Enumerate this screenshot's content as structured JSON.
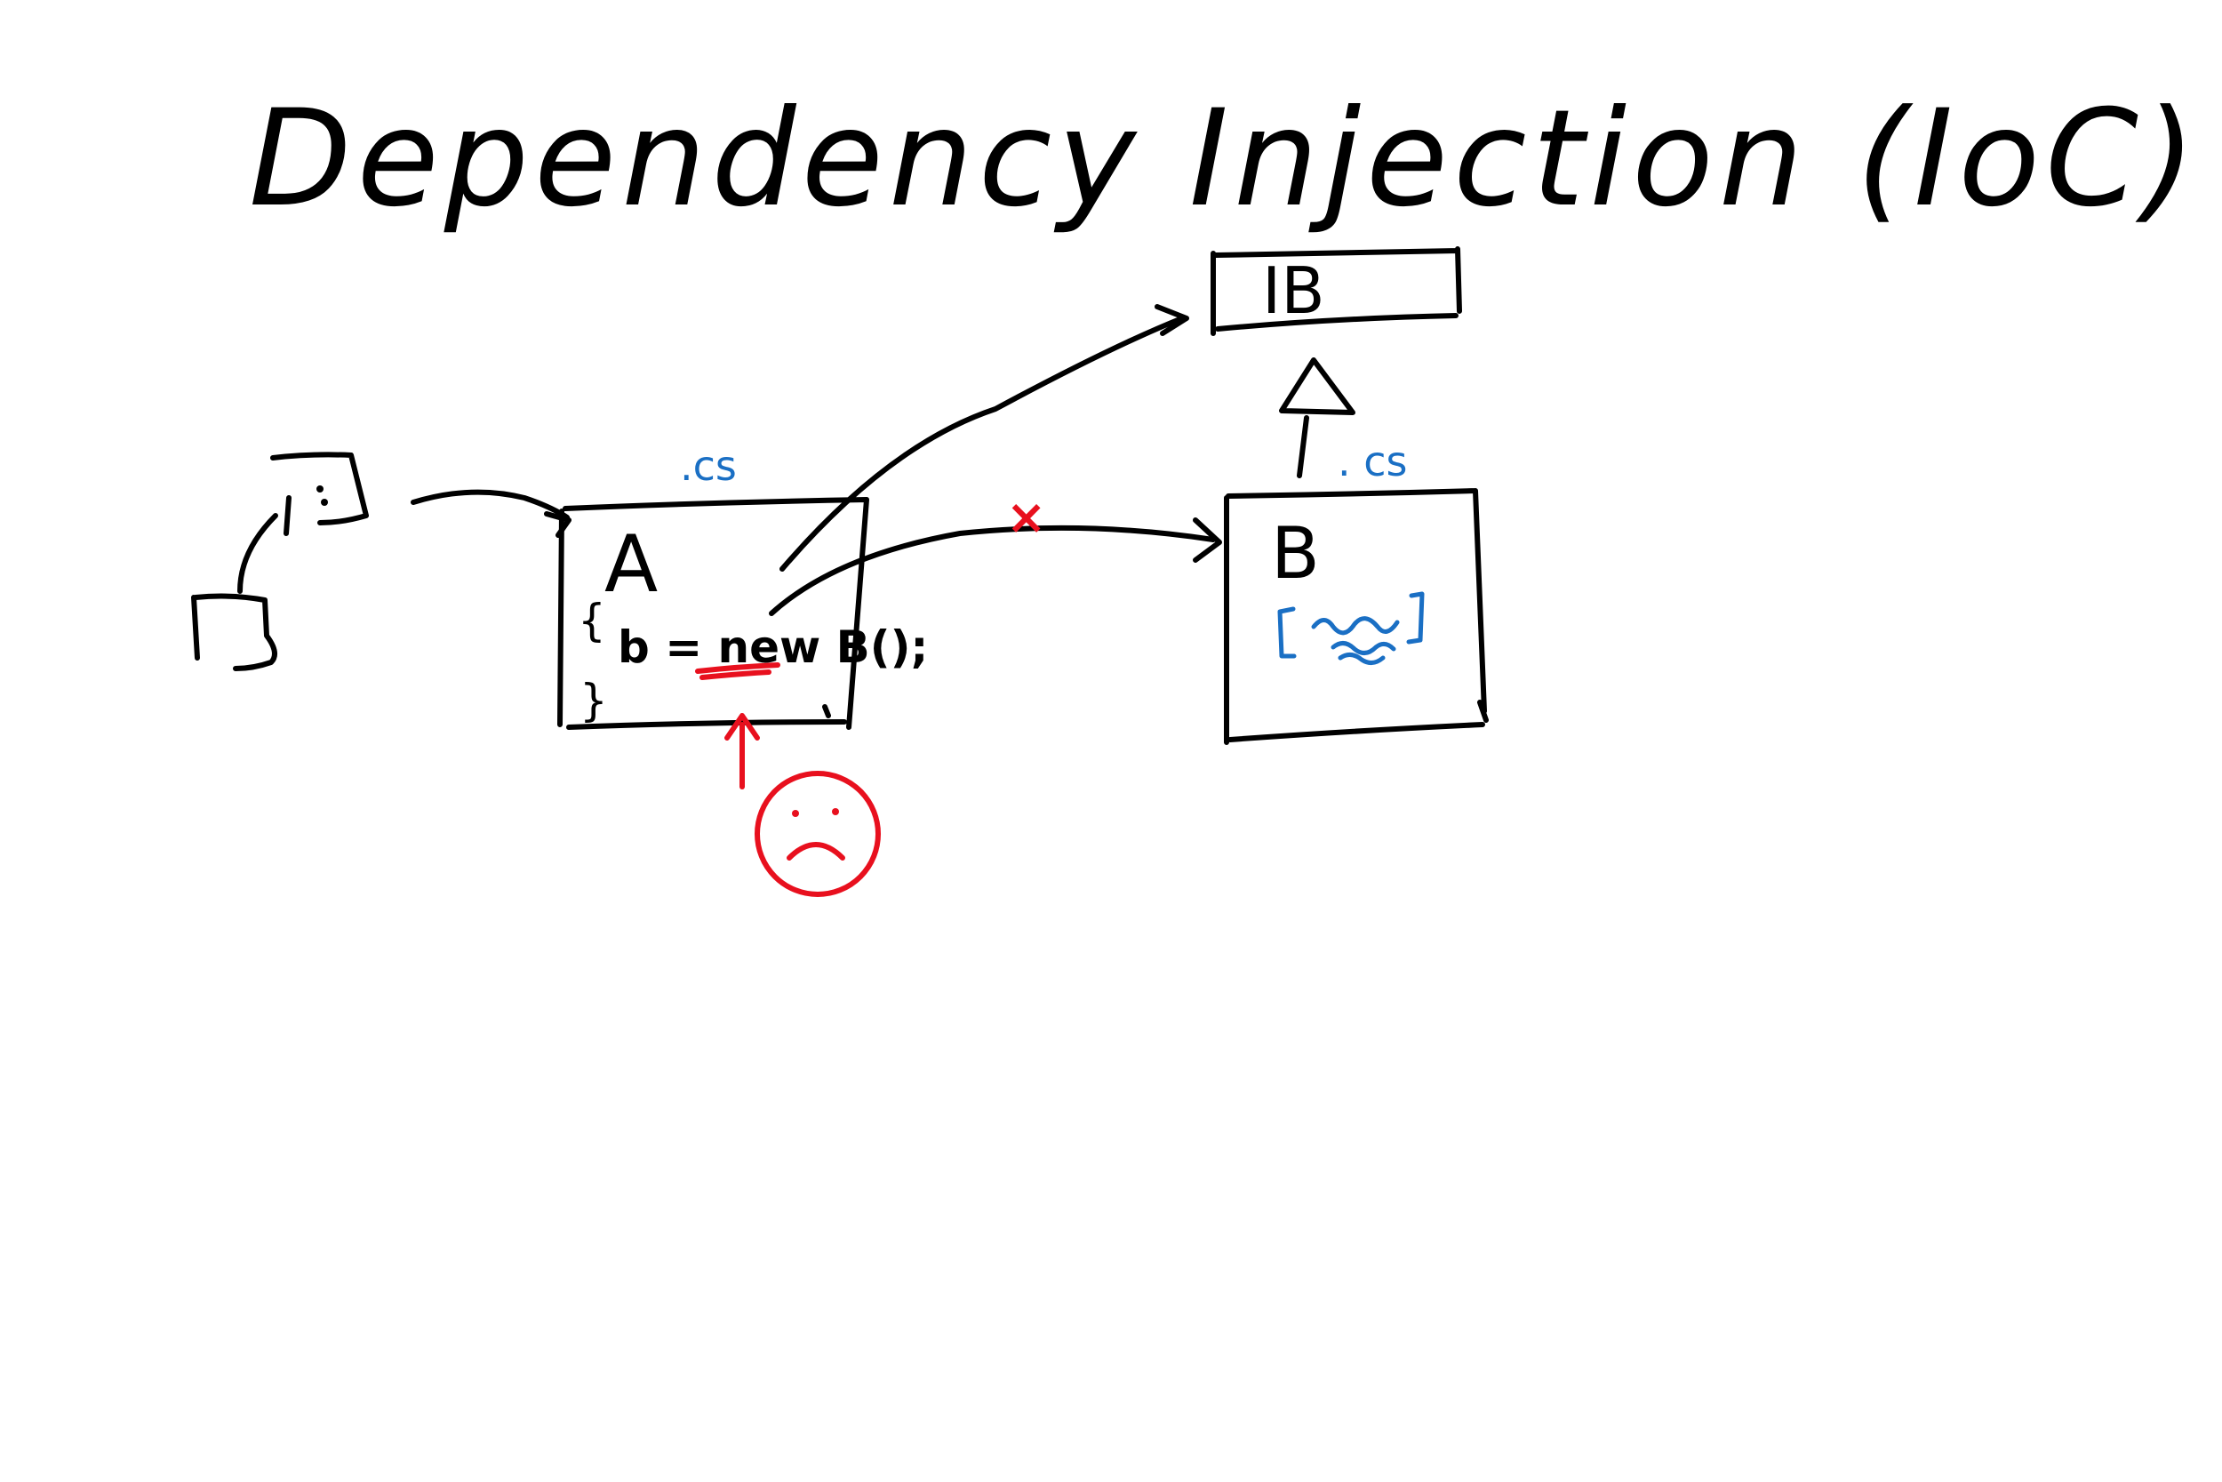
{
  "title": "Dependency Injection (IoC)",
  "colors": {
    "ink": "#000000",
    "warning": "#e8101e",
    "annotation": "#1a6fc4",
    "background": "#ffffff"
  },
  "interface_box": {
    "label": "IB"
  },
  "class_a": {
    "label": "A",
    "file_ext": ".cs",
    "open_brace": "{",
    "code": "b = new B();",
    "close_brace": "}"
  },
  "class_b": {
    "label": "B",
    "file_ext": ". cs",
    "attribute": "[ ]"
  },
  "broken_link_mark": "×",
  "sad_face_icon": "sad-face"
}
